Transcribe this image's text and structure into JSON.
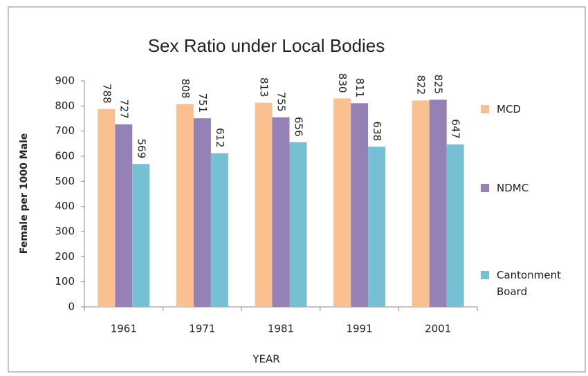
{
  "chart_data": {
    "type": "bar",
    "title": "Sex Ratio under Local Bodies",
    "x_label": "YEAR",
    "y_label": "Female per 1000 Male",
    "categories": [
      "1961",
      "1971",
      "1981",
      "1991",
      "2001"
    ],
    "series": [
      {
        "name": "MCD",
        "color": "#fac090",
        "values": [
          788,
          808,
          813,
          830,
          822
        ]
      },
      {
        "name": "NDMC",
        "color": "#9581b6",
        "values": [
          727,
          751,
          755,
          811,
          825
        ]
      },
      {
        "name": "Cantonment Board",
        "color": "#76c0d3",
        "values": [
          569,
          612,
          656,
          638,
          647
        ]
      }
    ],
    "ylim": [
      0,
      900
    ],
    "yticks": [
      0,
      100,
      200,
      300,
      400,
      500,
      600,
      700,
      800,
      900
    ],
    "grid": false,
    "legend": "right"
  }
}
